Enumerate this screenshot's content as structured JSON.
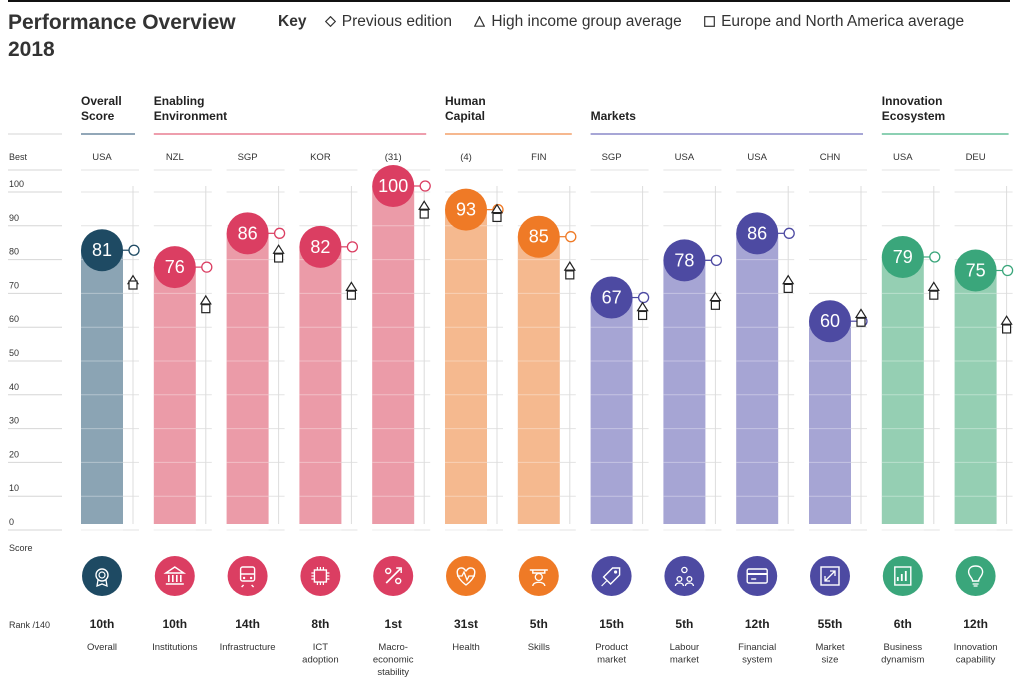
{
  "title_line1": "Performance Overview",
  "title_line2": "2018",
  "key": {
    "label": "Key",
    "previous": "Previous edition",
    "high_income": "High income group average",
    "regional": "Europe and North America average"
  },
  "axis": {
    "best_label": "Best",
    "score_label": "Score",
    "rank_label": "Rank /140",
    "ticks": [
      0,
      10,
      20,
      30,
      40,
      50,
      60,
      70,
      80,
      90,
      100
    ]
  },
  "groups": [
    {
      "name": "Overall\nScore",
      "color": "#6e8aa0",
      "start": 0,
      "end": 0
    },
    {
      "name": "Enabling\nEnvironment",
      "color": "#e87e92",
      "start": 1,
      "end": 4
    },
    {
      "name": "Human\nCapital",
      "color": "#f4a06a",
      "start": 5,
      "end": 6
    },
    {
      "name": "Markets",
      "color": "#8a88c8",
      "start": 7,
      "end": 10
    },
    {
      "name": "Innovation\nEcosystem",
      "color": "#66c09a",
      "start": 11,
      "end": 12
    }
  ],
  "chart_data": {
    "type": "bar",
    "categories": [
      "Overall",
      "Institutions",
      "Infrastructure",
      "ICT adoption",
      "Macro-economic stability",
      "Health",
      "Skills",
      "Product market",
      "Labour market",
      "Financial system",
      "Market size",
      "Business dynamism",
      "Innovation capability"
    ],
    "category_labels": [
      "Overall",
      "Institutions",
      "Infrastructure",
      "ICT\nadoption",
      "Macro-\neconomic\nstability",
      "Health",
      "Skills",
      "Product\nmarket",
      "Labour\nmarket",
      "Financial\nsystem",
      "Market\nsize",
      "Business\ndynamism",
      "Innovation\ncapability"
    ],
    "values": [
      81,
      76,
      86,
      82,
      100,
      93,
      85,
      67,
      78,
      86,
      60,
      79,
      75
    ],
    "previous_edition": [
      81,
      76,
      86,
      82,
      100,
      93,
      85,
      67,
      78,
      86,
      60,
      79,
      75
    ],
    "high_income_avg": [
      72,
      66,
      81,
      70,
      94,
      93,
      76,
      64,
      67,
      72,
      62,
      70,
      60
    ],
    "regional_avg": [
      71,
      64,
      79,
      68,
      92,
      91,
      74,
      62,
      65,
      70,
      60,
      68,
      58
    ],
    "best_performer": [
      "USA",
      "NZL",
      "SGP",
      "KOR",
      "(31)",
      "(4)",
      "FIN",
      "SGP",
      "USA",
      "USA",
      "CHN",
      "USA",
      "DEU"
    ],
    "ranks": [
      "10th",
      "10th",
      "14th",
      "8th",
      "1st",
      "31st",
      "5th",
      "15th",
      "5th",
      "12th",
      "55th",
      "6th",
      "12th"
    ],
    "ylim": [
      0,
      100
    ],
    "bar_colors": [
      "#8ba4b4",
      "#eb9ba8",
      "#eb9ba8",
      "#eb9ba8",
      "#eb9ba8",
      "#f5b98f",
      "#f5b98f",
      "#a6a5d4",
      "#a6a5d4",
      "#a6a5d4",
      "#a6a5d4",
      "#95cfb3",
      "#95cfb3"
    ],
    "circle_colors": [
      "#1e4a63",
      "#db3e62",
      "#db3e62",
      "#db3e62",
      "#db3e62",
      "#ef7a26",
      "#ef7a26",
      "#4d4aa2",
      "#4d4aa2",
      "#4d4aa2",
      "#4d4aa2",
      "#3aa67b",
      "#3aa67b"
    ],
    "icons": [
      "medal-icon",
      "bank-icon",
      "train-icon",
      "chip-icon",
      "percent-icon",
      "heart-pulse-icon",
      "graduate-icon",
      "tag-icon",
      "people-icon",
      "card-icon",
      "expand-icon",
      "chart-building-icon",
      "bulb-icon"
    ]
  }
}
